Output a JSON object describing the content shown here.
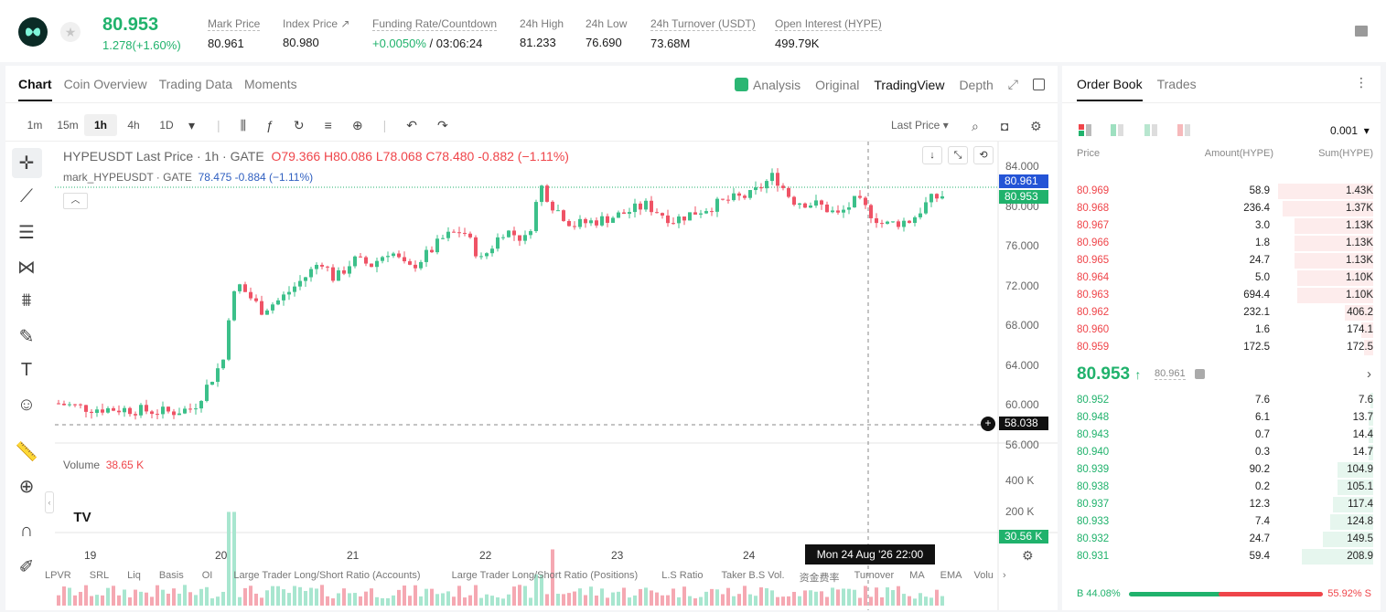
{
  "header": {
    "last_price": "80.953",
    "change": "1.278(+1.60%)",
    "stats": [
      {
        "label": "Mark Price",
        "value": "80.961",
        "under": true
      },
      {
        "label": "Index Price ↗",
        "value": "80.980",
        "under": false
      },
      {
        "label": "Funding Rate/Countdown",
        "value_green": "+0.0050%",
        "value_rest": " / 03:06:24",
        "under": true
      },
      {
        "label": "24h High",
        "value": "81.233",
        "under": false
      },
      {
        "label": "24h Low",
        "value": "76.690",
        "under": false
      },
      {
        "label": "24h Turnover (USDT)",
        "value": "73.68M",
        "under": true
      },
      {
        "label": "Open Interest (HYPE)",
        "value": "499.79K",
        "under": true
      }
    ]
  },
  "chart_tabs": [
    "Chart",
    "Coin Overview",
    "Trading Data",
    "Moments"
  ],
  "view_tabs": [
    "Analysis",
    "Original",
    "TradingView",
    "Depth"
  ],
  "intervals": [
    "1m",
    "15m",
    "1h",
    "4h",
    "1D"
  ],
  "price_type": "Last Price",
  "legend": {
    "symbol": "HYPEUSDT Last Price · 1h · GATE",
    "o": "O79.366",
    "h": "H80.086",
    "l": "L78.068",
    "c": "C78.480",
    "chg": "-0.882 (−1.11%)",
    "mark": "mark_HYPEUSDT · GATE",
    "mark_val": "78.475",
    "mark_chg": "-0.884 (−1.11%)"
  },
  "price_axis": [
    "84.000",
    "80.000",
    "76.000",
    "72.000",
    "68.000",
    "64.000",
    "60.000",
    "56.000"
  ],
  "price_tags": {
    "mark": "80.961",
    "last": "80.953",
    "cross": "58.038"
  },
  "volume": {
    "label": "Volume",
    "value": "38.65 K",
    "axis": [
      "400 K",
      "200 K"
    ],
    "tag": "30.56 K"
  },
  "dates": [
    "19",
    "20",
    "21",
    "22",
    "23",
    "24"
  ],
  "crosshair_date": "Mon 24 Aug '26   22:00",
  "indicators": [
    "LPVR",
    "SRL",
    "Liq",
    "Basis",
    "OI",
    "Large Trader Long/Short Ratio (Accounts)",
    "Large Trader Long/Short Ratio (Positions)",
    "L.S Ratio",
    "Taker B.S Vol.",
    "资金费率",
    "Turnover",
    "MA",
    "EMA",
    "Volu"
  ],
  "orderbook": {
    "tabs": [
      "Order Book",
      "Trades"
    ],
    "precision": "0.001",
    "headers": [
      "Price",
      "Amount(HYPE)",
      "Sum(HYPE)"
    ],
    "asks": [
      [
        "80.969",
        "58.9",
        "1.43K",
        0.4
      ],
      [
        "80.968",
        "236.4",
        "1.37K",
        0.38
      ],
      [
        "80.967",
        "3.0",
        "1.13K",
        0.33
      ],
      [
        "80.966",
        "1.8",
        "1.13K",
        0.33
      ],
      [
        "80.965",
        "24.7",
        "1.13K",
        0.33
      ],
      [
        "80.964",
        "5.0",
        "1.10K",
        0.32
      ],
      [
        "80.963",
        "694.4",
        "1.10K",
        0.32
      ],
      [
        "80.962",
        "232.1",
        "406.2",
        0.12
      ],
      [
        "80.960",
        "1.6",
        "174.1",
        0.05
      ],
      [
        "80.959",
        "172.5",
        "172.5",
        0.04
      ]
    ],
    "mid": "80.953",
    "mid_mark": "80.961",
    "bids": [
      [
        "80.952",
        "7.6",
        "7.6",
        0.01
      ],
      [
        "80.948",
        "6.1",
        "13.7",
        0.02
      ],
      [
        "80.943",
        "0.7",
        "14.4",
        0.02
      ],
      [
        "80.940",
        "0.3",
        "14.7",
        0.02
      ],
      [
        "80.939",
        "90.2",
        "104.9",
        0.15
      ],
      [
        "80.938",
        "0.2",
        "105.1",
        0.15
      ],
      [
        "80.937",
        "12.3",
        "117.4",
        0.17
      ],
      [
        "80.933",
        "7.4",
        "124.8",
        0.18
      ],
      [
        "80.932",
        "24.7",
        "149.5",
        0.21
      ],
      [
        "80.931",
        "59.4",
        "208.9",
        0.3
      ]
    ],
    "buy_pct": "B 44.08%",
    "sell_pct": "55.92% S"
  }
}
